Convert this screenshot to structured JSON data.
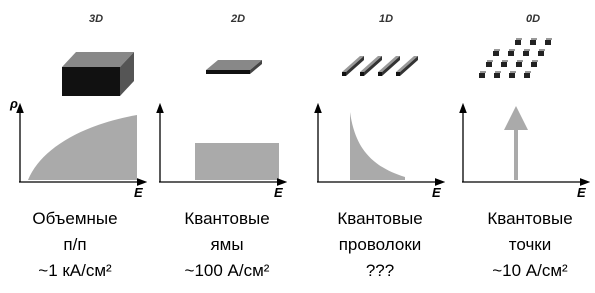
{
  "y_axis_label": "ρ",
  "panels": [
    {
      "dimension": "3D",
      "x_axis_label": "E",
      "caption": [
        "Объемные",
        "п/п",
        "~1 кА/см²"
      ]
    },
    {
      "dimension": "2D",
      "x_axis_label": "E",
      "caption": [
        "Квантовые",
        "ямы",
        "~100 А/см²"
      ]
    },
    {
      "dimension": "1D",
      "x_axis_label": "E",
      "caption": [
        "Квантовые",
        "проволоки",
        "???"
      ]
    },
    {
      "dimension": "0D",
      "x_axis_label": "E",
      "caption": [
        "Квантовые",
        "точки",
        "~10 А/см²"
      ]
    }
  ]
}
